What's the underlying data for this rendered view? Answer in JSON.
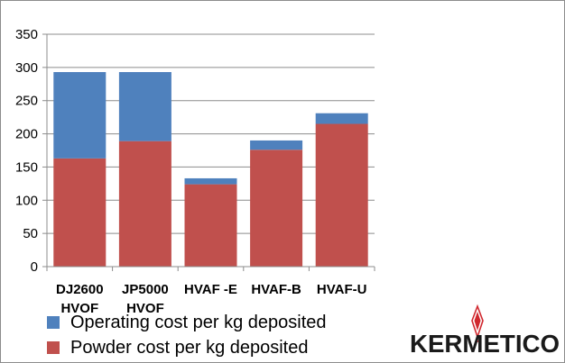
{
  "chart_data": {
    "type": "bar",
    "stacked": true,
    "categories": [
      "DJ2600\nHVOF",
      "JP5000\nHVOF",
      "HVAF -E",
      "HVAF-B",
      "HVAF-U"
    ],
    "series": [
      {
        "name": "Powder cost per kg deposited",
        "values": [
          163,
          189,
          124,
          176,
          215
        ],
        "color": "#c0504d"
      },
      {
        "name": "Operating cost per kg deposited",
        "values": [
          130,
          104,
          9,
          14,
          16
        ],
        "color": "#4f81bd"
      }
    ],
    "ylim": [
      0,
      350
    ],
    "yticks": [
      0,
      50,
      100,
      150,
      200,
      250,
      300,
      350
    ],
    "grid": true,
    "legend_position": "bottom-left",
    "xlabel": "",
    "ylabel": "",
    "title": ""
  },
  "legend": {
    "items": [
      {
        "label": "Operating cost per kg deposited",
        "color": "#4f81bd"
      },
      {
        "label": "Powder cost per kg deposited",
        "color": "#c0504d"
      }
    ]
  },
  "logo": {
    "text": "KERMETICO",
    "accent_color": "#d0282e",
    "text_color": "#1a1a1a"
  }
}
